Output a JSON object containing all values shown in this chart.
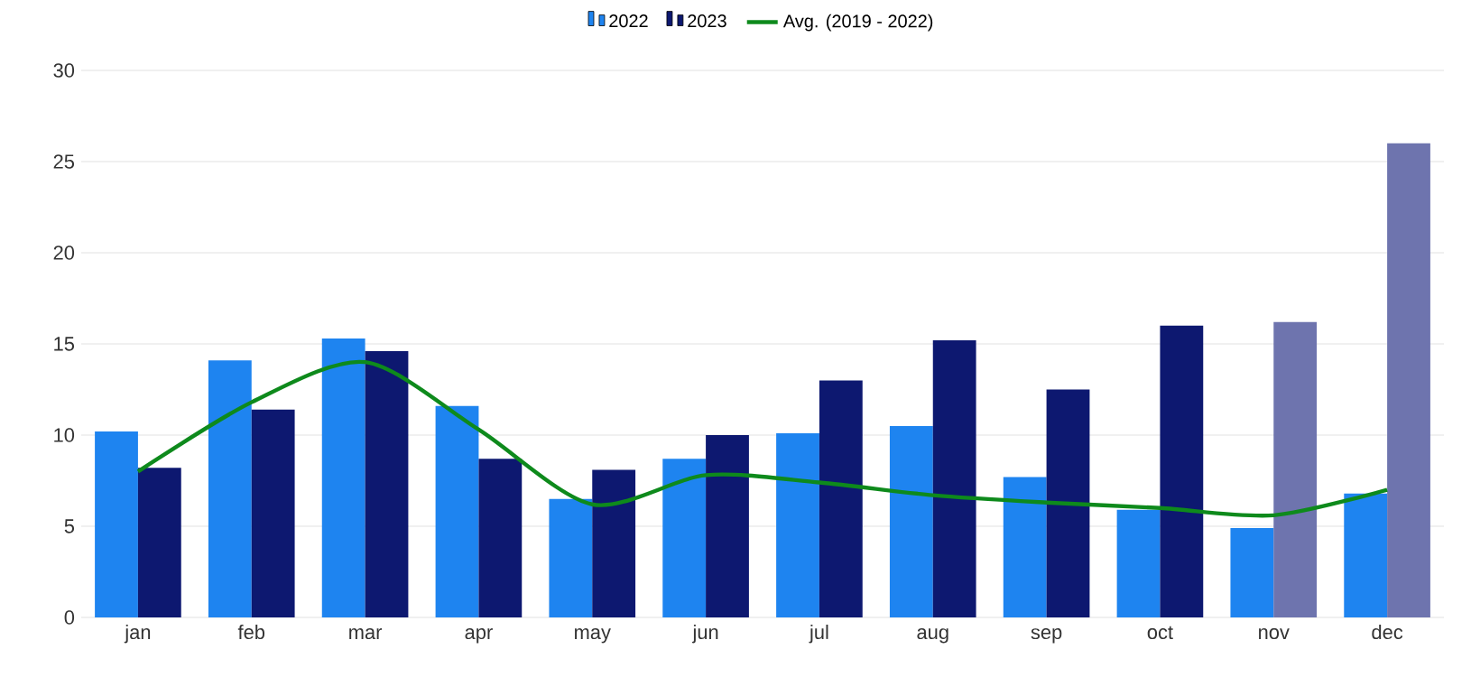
{
  "chart_data": {
    "type": "bar",
    "categories": [
      "jan",
      "feb",
      "mar",
      "apr",
      "may",
      "jun",
      "jul",
      "aug",
      "sep",
      "oct",
      "nov",
      "dec"
    ],
    "series": [
      {
        "name": "2022",
        "color": "#1e84f0",
        "values": [
          10.2,
          14.1,
          15.3,
          11.6,
          6.5,
          8.7,
          10.1,
          10.5,
          7.7,
          5.9,
          4.9,
          6.8
        ]
      },
      {
        "name": "2023",
        "color": "#0d1870",
        "colors": [
          "#0d1870",
          "#0d1870",
          "#0d1870",
          "#0d1870",
          "#0d1870",
          "#0d1870",
          "#0d1870",
          "#0d1870",
          "#0d1870",
          "#0d1870",
          "#6e74ae",
          "#6e74ae"
        ],
        "values": [
          8.2,
          11.4,
          14.6,
          8.7,
          8.1,
          10.0,
          13.0,
          15.2,
          12.5,
          16.0,
          16.2,
          26.0
        ]
      },
      {
        "name": "Avg. (2019 - 2022)",
        "type": "line",
        "color": "#0e8a1c",
        "values": [
          8.0,
          11.8,
          14.0,
          10.3,
          6.2,
          7.8,
          7.4,
          6.7,
          6.3,
          6.0,
          5.6,
          7.0
        ]
      }
    ],
    "ylim": [
      0,
      30
    ],
    "yticks": [
      0,
      5,
      10,
      15,
      20,
      25,
      30
    ],
    "grid": "y",
    "legend": "top"
  }
}
